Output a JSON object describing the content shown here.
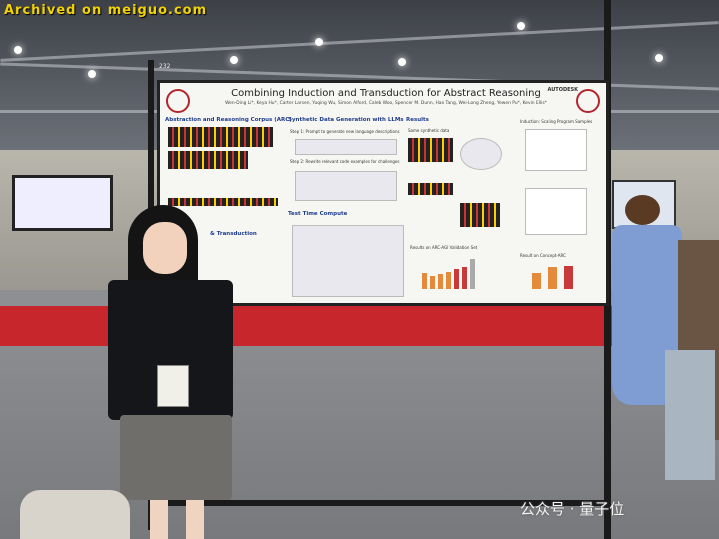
{
  "watermark_top": "Archived on meiguo.com",
  "board_number": "232",
  "poster": {
    "title": "Combining Induction and Transduction for Abstract Reasoning",
    "authors": "Wen-Ding Li*, Keya Hu*, Carter Larsen, Yuqing Wu, Simon Alford, Caleb Woo, Spencer M. Dunn, Hao Tang, Wei-Long Zheng, Yewen Pu*, Kevin Ellis*",
    "sponsor": "AUTODESK",
    "sections": {
      "arc": "Abstraction and Reasoning Corpus (ARC)",
      "synthetic": "Synthetic Data Generation with LLMs",
      "step1": "Step 1: Prompt to generate new language descriptions",
      "step2": "Step 2: Rewrite relevant code examples for challenges",
      "test_time": "Test Time Compute",
      "transduction": "& Transduction",
      "results": "Results",
      "same_data": "Same synthetic data",
      "scaling": "Induction: Scaling Program Samples",
      "validation": "Results on ARC-AGI Validation Set",
      "concept": "Result on Concept-ARC"
    }
  },
  "watermark_bottom": "公众号 · 量子位"
}
